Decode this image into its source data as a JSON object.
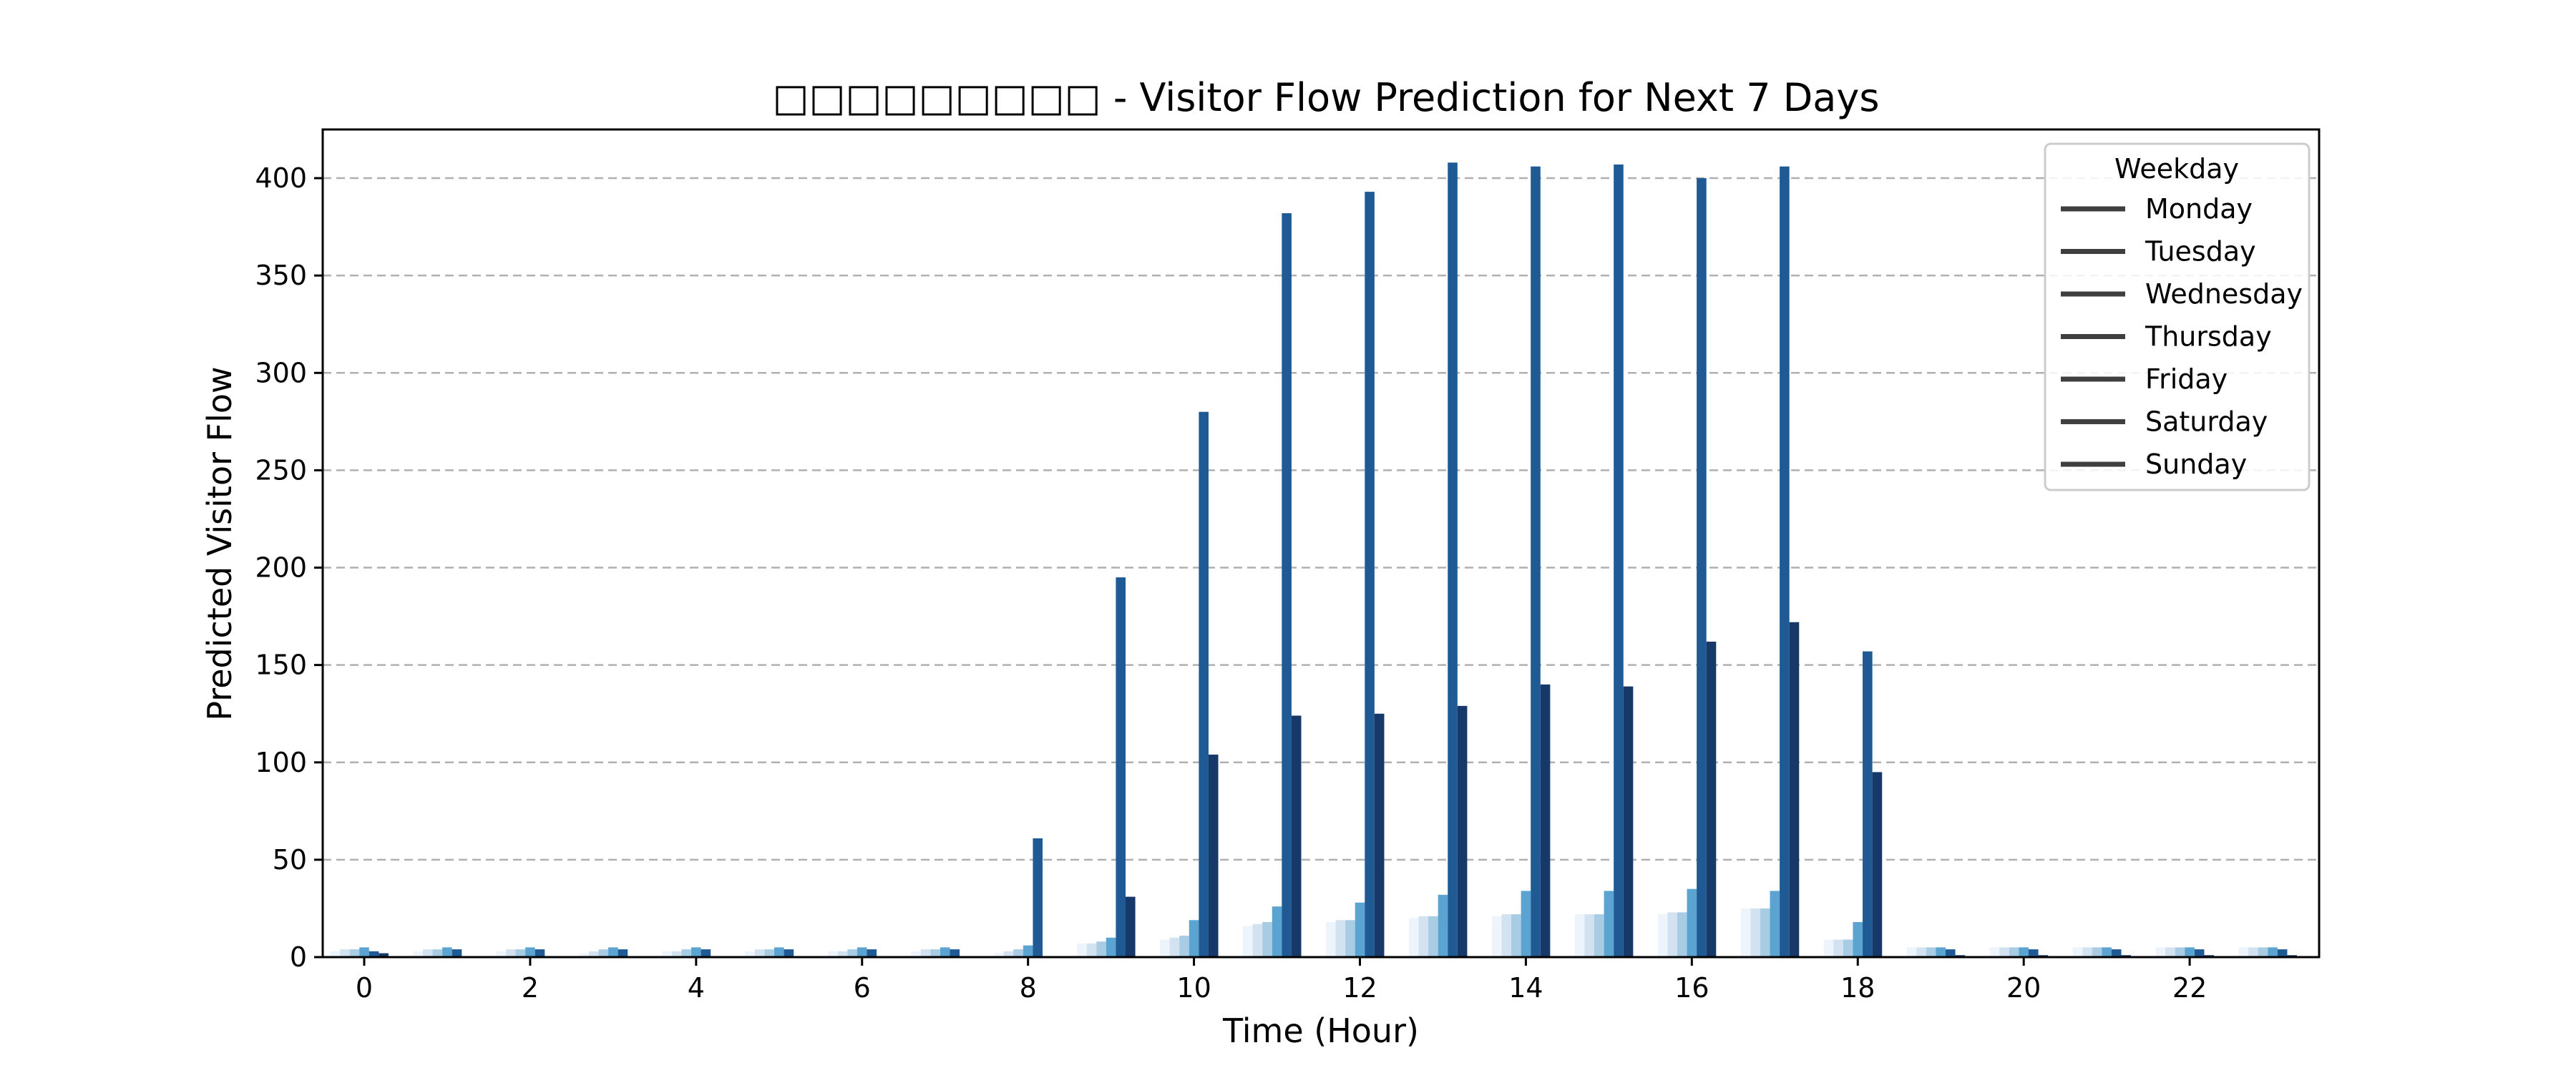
{
  "chart_data": {
    "type": "bar",
    "title": "□□□□□□□□□ - Visitor Flow Prediction for Next 7 Days",
    "xlabel": "Time (Hour)",
    "ylabel": "Predicted Visitor Flow",
    "ylim": [
      0,
      425
    ],
    "yticks": [
      0,
      50,
      100,
      150,
      200,
      250,
      300,
      350,
      400
    ],
    "xticks": [
      0,
      2,
      4,
      6,
      8,
      10,
      12,
      14,
      16,
      18,
      20,
      22
    ],
    "grid": "y, dashed",
    "legend": {
      "title": "Weekday",
      "placement": "top-right"
    },
    "categories": [
      0,
      1,
      2,
      3,
      4,
      5,
      6,
      7,
      8,
      9,
      10,
      11,
      12,
      13,
      14,
      15,
      16,
      17,
      18,
      19,
      20,
      21,
      22,
      23
    ],
    "series": [
      {
        "name": "Monday",
        "color": "#eef4fb",
        "values": [
          3,
          3,
          3,
          2,
          3,
          3,
          3,
          3,
          2,
          7,
          9,
          16,
          18,
          20,
          21,
          22,
          22,
          25,
          9,
          5,
          5,
          5,
          5,
          5
        ]
      },
      {
        "name": "Tuesday",
        "color": "#d2e2f1",
        "values": [
          4,
          4,
          4,
          3,
          3,
          4,
          3,
          4,
          3,
          7,
          10,
          17,
          19,
          21,
          22,
          22,
          23,
          25,
          9,
          5,
          5,
          5,
          5,
          5
        ]
      },
      {
        "name": "Wednesday",
        "color": "#a8cce4",
        "values": [
          4,
          4,
          4,
          4,
          4,
          4,
          4,
          4,
          4,
          8,
          11,
          18,
          19,
          21,
          22,
          22,
          23,
          25,
          9,
          5,
          5,
          5,
          5,
          5
        ]
      },
      {
        "name": "Thursday",
        "color": "#5ba3d0",
        "values": [
          5,
          5,
          5,
          5,
          5,
          5,
          5,
          5,
          6,
          10,
          19,
          26,
          28,
          32,
          34,
          34,
          35,
          34,
          18,
          5,
          5,
          5,
          5,
          5
        ]
      },
      {
        "name": "Friday",
        "color": "#1f5a94",
        "values": [
          3,
          4,
          4,
          4,
          4,
          4,
          4,
          4,
          61,
          195,
          280,
          382,
          393,
          408,
          406,
          407,
          400,
          406,
          157,
          4,
          4,
          4,
          4,
          4
        ]
      },
      {
        "name": "Saturday",
        "color": "#16396a",
        "values": [
          2,
          0,
          0,
          0,
          0,
          0,
          0,
          0,
          0,
          31,
          104,
          124,
          125,
          129,
          140,
          139,
          162,
          172,
          95,
          1,
          1,
          1,
          1,
          1
        ]
      },
      {
        "name": "Sunday",
        "color": "#0b2143",
        "values": [
          0,
          0,
          0,
          0,
          0,
          0,
          0,
          0,
          0,
          0,
          0,
          0,
          0,
          0,
          0,
          0,
          0,
          0,
          0,
          0,
          0,
          0,
          0,
          0
        ]
      }
    ]
  }
}
